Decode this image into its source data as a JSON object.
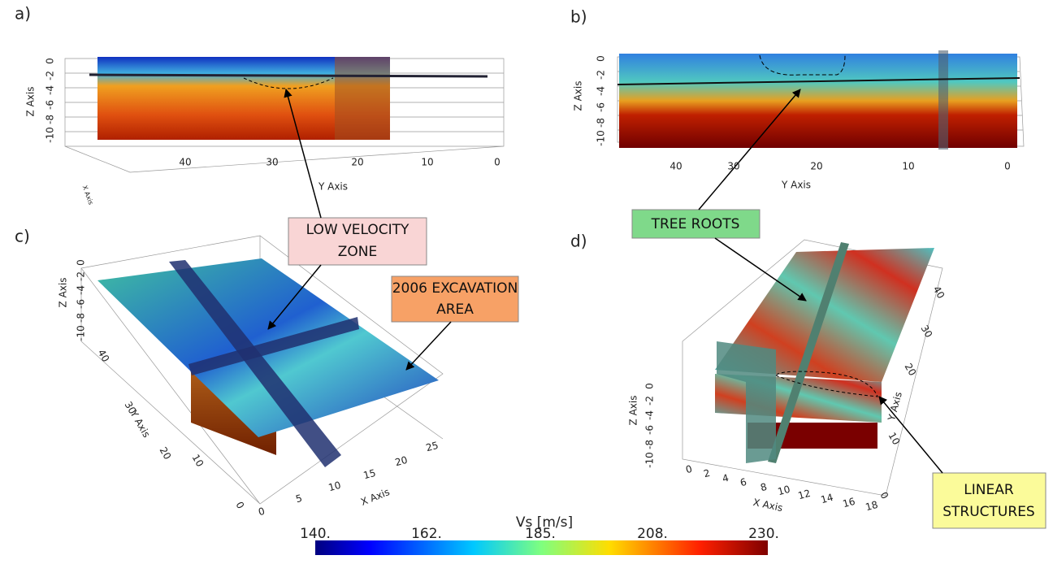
{
  "panels": [
    {
      "label": "a)",
      "z_axis_title": "Z Axis",
      "z_ticks": [
        "0",
        "-2",
        "-4",
        "-6",
        "-8",
        "-10"
      ],
      "y_axis_title": "Y Axis",
      "y_ticks": [
        "40",
        "30",
        "20",
        "10",
        "0"
      ],
      "x_axis_title": "X Axis"
    },
    {
      "label": "b)",
      "z_axis_title": "Z Axis",
      "z_ticks": [
        "0",
        "-2",
        "-4",
        "-6",
        "-8",
        "-10"
      ],
      "y_axis_title": "Y Axis",
      "y_ticks": [
        "40",
        "30",
        "20",
        "10",
        "0"
      ]
    },
    {
      "label": "c)",
      "z_axis_title": "Z Axis",
      "z_ticks": [
        "0",
        "-2",
        "-4",
        "-6",
        "-8",
        "-10"
      ],
      "y_axis_title": "Y Axis",
      "y_ticks": [
        "40",
        "30",
        "20",
        "10",
        "0"
      ],
      "x_axis_title": "X Axis",
      "x_ticks": [
        "0",
        "5",
        "10",
        "15",
        "20",
        "25"
      ]
    },
    {
      "label": "d)",
      "z_axis_title": "Z Axis",
      "z_ticks": [
        "0",
        "-2",
        "-4",
        "-6",
        "-8",
        "-10"
      ],
      "y_axis_title": "Y Axis",
      "y_ticks": [
        "40",
        "30",
        "20",
        "10",
        "0"
      ],
      "x_axis_title": "X Axis",
      "x_ticks": [
        "0",
        "2",
        "4",
        "6",
        "8",
        "10",
        "12",
        "14",
        "16",
        "18"
      ]
    }
  ],
  "annotations": [
    {
      "lines": [
        "LOW VELOCITY",
        "ZONE"
      ]
    },
    {
      "lines": [
        "TREE ROOTS"
      ]
    },
    {
      "lines": [
        "2006 EXCAVATION",
        "AREA"
      ]
    },
    {
      "lines": [
        "LINEAR",
        "STRUCTURES"
      ]
    }
  ],
  "colorbar": {
    "title": "Vs [m/s]",
    "ticks": [
      "140.",
      "162.",
      "185.",
      "208.",
      "230."
    ]
  }
}
